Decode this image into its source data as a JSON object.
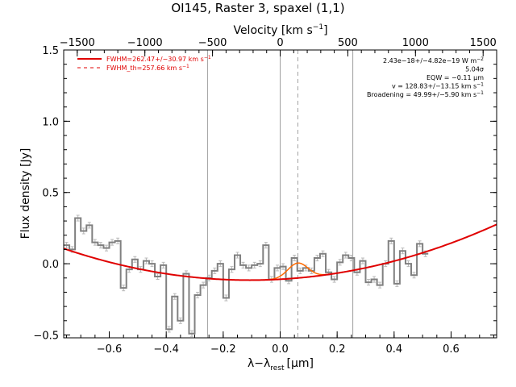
{
  "chart_data": {
    "type": "line",
    "title": "OI145, Raster 3, spaxel (1,1)",
    "xlabel": "λ−λ",
    "xlabel_sub": "rest",
    "xlabel_unit": "[μm]",
    "ylabel": "Flux density [Jy]",
    "top_axis_label": "Velocity [km s",
    "top_axis_sup": "−1",
    "top_axis_close": "]",
    "xlim": [
      -0.76,
      0.76
    ],
    "ylim": [
      -0.52,
      1.5
    ],
    "top_xlim": [
      -1600,
      1600
    ],
    "x_ticks": [
      -0.6,
      -0.4,
      -0.2,
      0.0,
      0.2,
      0.4,
      0.6
    ],
    "x_tick_labels": [
      "−0.6",
      "−0.4",
      "−0.2",
      "0.0",
      "0.2",
      "0.4",
      "0.6"
    ],
    "y_ticks": [
      -0.5,
      0.0,
      0.5,
      1.0,
      1.5
    ],
    "y_tick_labels": [
      "−0.5",
      "0.0",
      "0.5",
      "1.0",
      "1.5"
    ],
    "top_ticks": [
      -1500,
      -1000,
      -500,
      0,
      500,
      1000,
      1500
    ],
    "top_tick_labels": [
      "−1500",
      "−1000",
      "−500",
      "0",
      "500",
      "1000",
      "1500"
    ],
    "vertical_lines_solid": [
      -0.255,
      0.0,
      0.255
    ],
    "vertical_line_dashed": 0.062,
    "step_x_start": -0.76,
    "step_bin_width": 0.02,
    "step_values": [
      0.13,
      0.1,
      0.32,
      0.23,
      0.27,
      0.15,
      0.13,
      0.11,
      0.15,
      0.16,
      -0.17,
      -0.04,
      0.03,
      -0.04,
      0.02,
      0.0,
      -0.09,
      -0.01,
      -0.46,
      -0.23,
      -0.4,
      -0.07,
      -0.49,
      -0.22,
      -0.15,
      -0.1,
      -0.05,
      0.0,
      -0.24,
      -0.04,
      0.06,
      -0.01,
      -0.03,
      -0.01,
      0.0,
      0.13,
      -0.11,
      -0.03,
      -0.02,
      -0.12,
      0.04,
      -0.05,
      -0.03,
      -0.05,
      0.04,
      0.07,
      -0.06,
      -0.11,
      0.01,
      0.06,
      0.04,
      -0.06,
      0.02,
      -0.13,
      -0.11,
      -0.15,
      0.0,
      0.16,
      -0.14,
      0.09,
      0.0,
      -0.08,
      0.14,
      0.07
    ],
    "step_error": 0.02,
    "fit_poly": {
      "a": -0.112,
      "b": 0.08,
      "c": 0.52,
      "x0": -0.03
    },
    "fit_gaussian": {
      "center": 0.062,
      "amplitude": 0.105,
      "sigma": 0.035
    },
    "legend": [
      {
        "label": "FWHM=262.47+/−30.97 km s",
        "sup": "−1",
        "style": "solid",
        "color": "#e00000"
      },
      {
        "label": "FWHM_th=257.66 km s",
        "sup": "−1",
        "style": "dashed",
        "color": "#e00000"
      }
    ],
    "annotations": [
      {
        "text": "2.43e−18+/−4.82e−19 W m",
        "sup": "−2"
      },
      {
        "text": "5.04σ",
        "sup": ""
      },
      {
        "text": "EQW = −0.11 μm",
        "sup": ""
      },
      {
        "text": "v = 128.83+/−13.15 km s",
        "sup": "−1"
      },
      {
        "text": "Broadening = 49.99+/−5.90 km s",
        "sup": "−1"
      }
    ],
    "colors": {
      "data": "#808080",
      "error": "#b8b8b8",
      "fit": "#e00000",
      "line_fit": "#ff6a00",
      "vlines": "#a0a0a0"
    }
  }
}
